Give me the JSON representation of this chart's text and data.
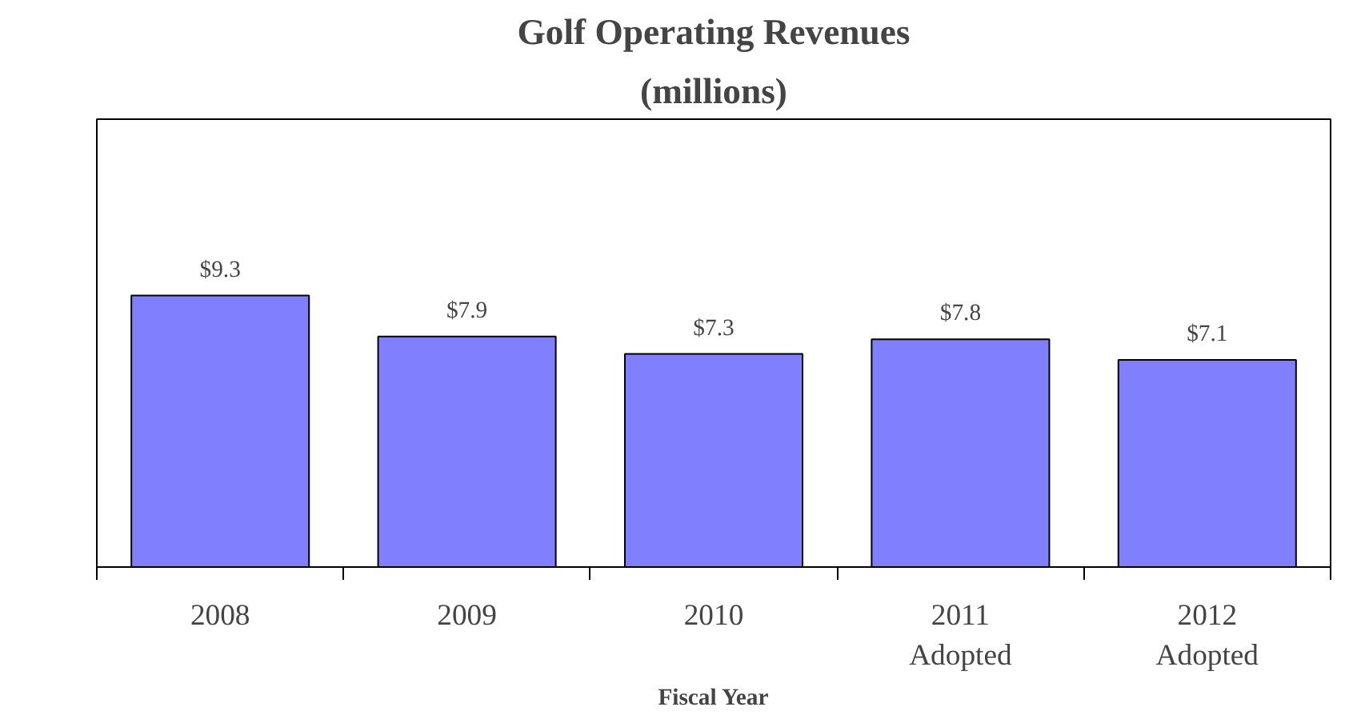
{
  "chart_data": {
    "type": "bar",
    "title": "Golf Operating Revenues",
    "subtitle": "(millions)",
    "xlabel": "Fiscal Year",
    "categories": [
      "2008",
      "2009",
      "2010",
      "2011\nAdopted",
      "2012\nAdopted"
    ],
    "values": [
      9.3,
      7.9,
      7.3,
      7.8,
      7.1
    ],
    "value_labels": [
      "$9.3",
      "$7.9",
      "$7.3",
      "$7.8",
      "$7.1"
    ],
    "color": "#8080ff",
    "tick_labels": "x"
  }
}
